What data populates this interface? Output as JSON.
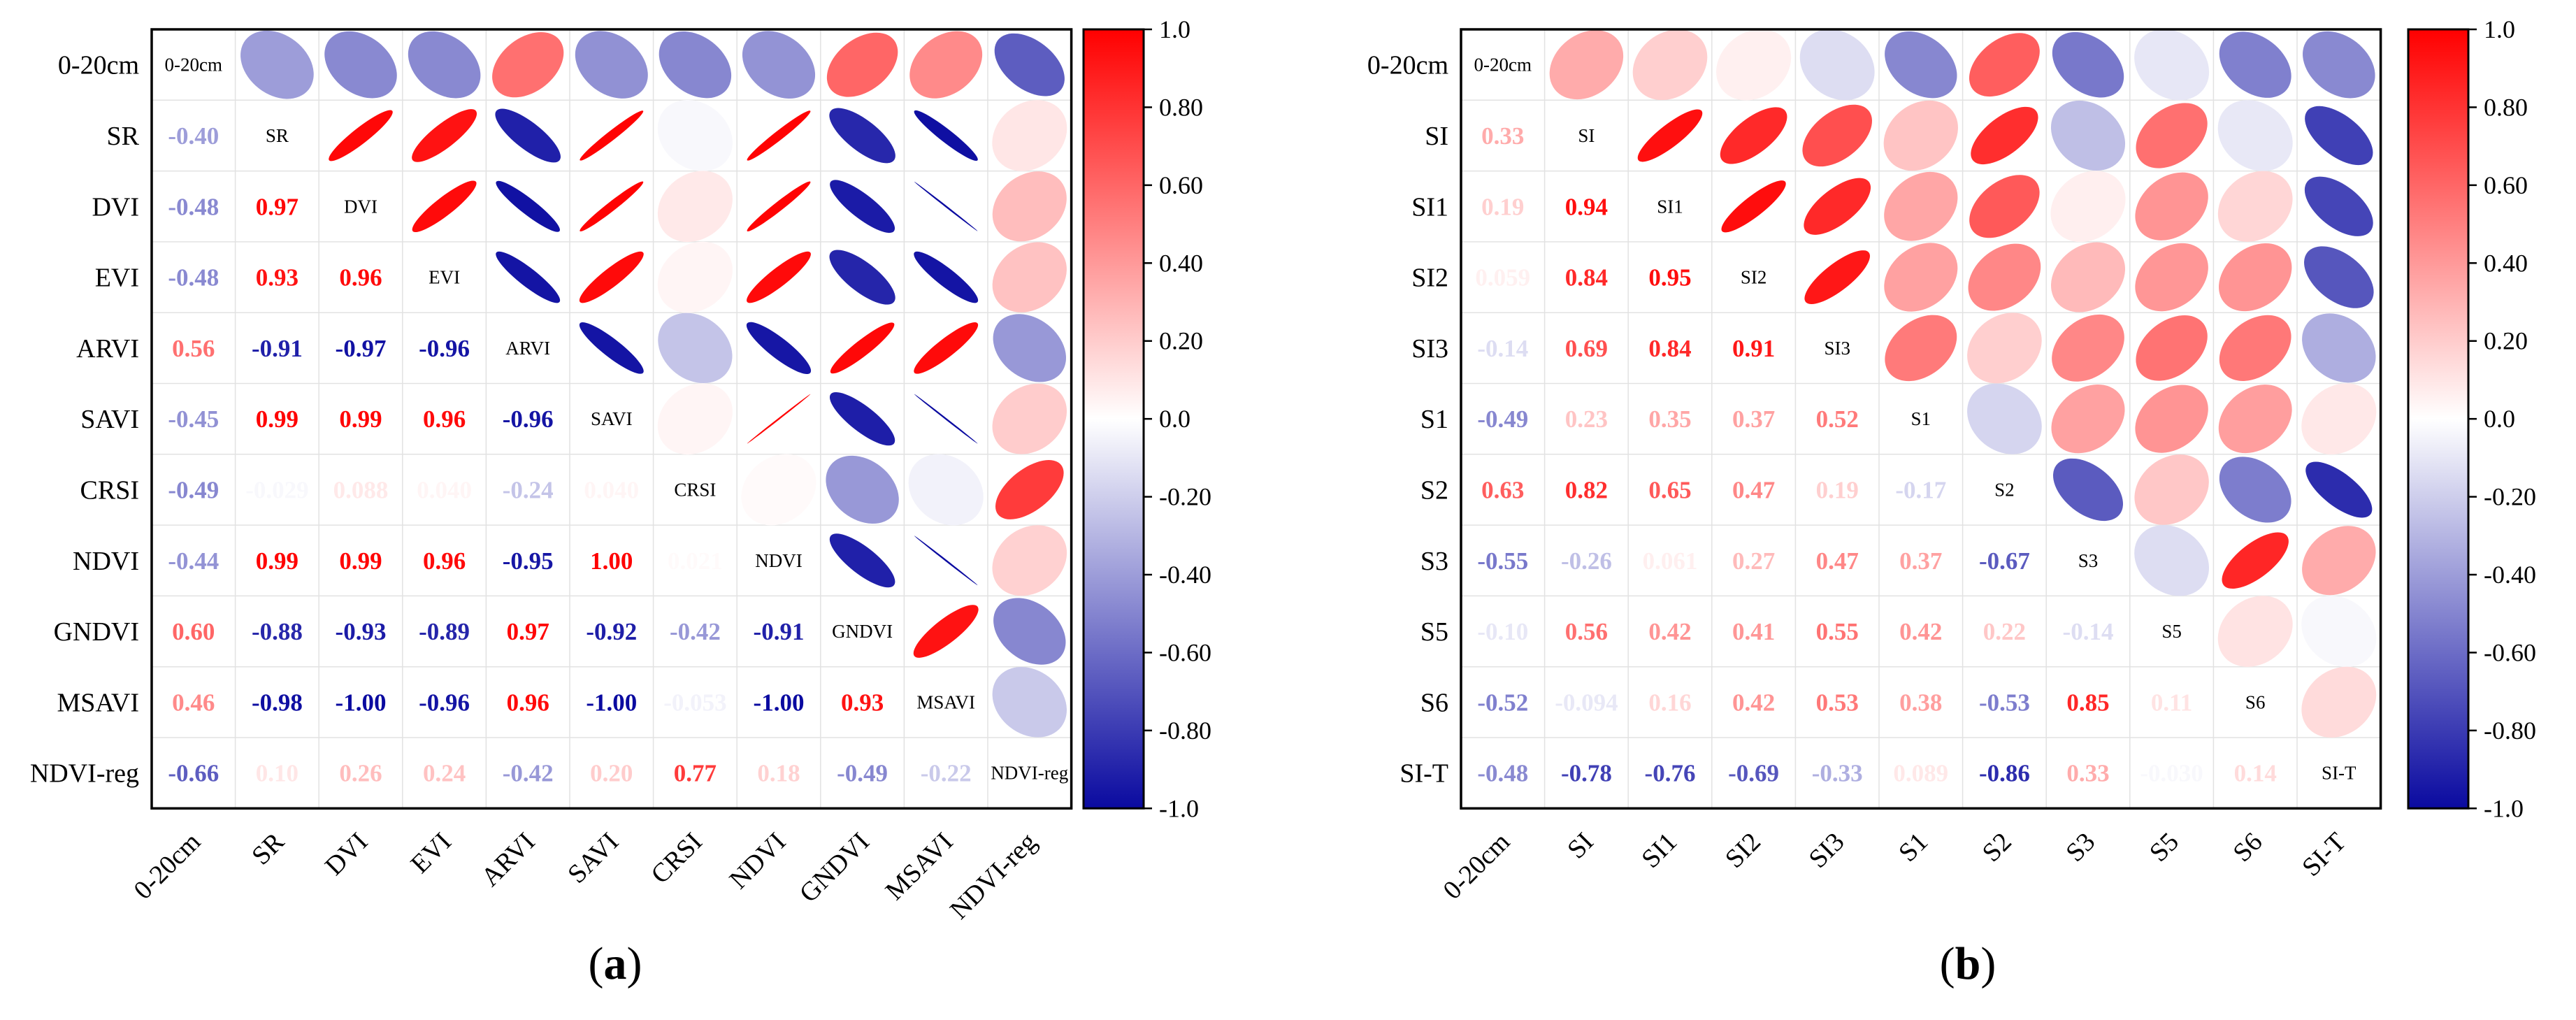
{
  "panels": [
    {
      "id": "a",
      "caption_letter": "a",
      "chart_data": {
        "type": "heatmap",
        "subtype": "correlation-matrix",
        "labels": [
          "0-20cm",
          "SR",
          "DVI",
          "EVI",
          "ARVI",
          "SAVI",
          "CRSI",
          "NDVI",
          "GNDVI",
          "MSAVI",
          "NDVI-reg"
        ],
        "matrix": [
          [
            1,
            -0.4,
            -0.48,
            -0.48,
            0.56,
            -0.45,
            -0.49,
            -0.44,
            0.6,
            0.46,
            -0.66
          ],
          [
            -0.4,
            1,
            0.97,
            0.93,
            -0.91,
            0.99,
            -0.029,
            0.99,
            -0.88,
            -0.98,
            0.1
          ],
          [
            -0.48,
            0.97,
            1,
            0.96,
            -0.97,
            0.99,
            0.088,
            0.99,
            -0.93,
            -1.0,
            0.26
          ],
          [
            -0.48,
            0.93,
            0.96,
            1,
            -0.96,
            0.96,
            0.04,
            0.96,
            -0.89,
            -0.96,
            0.24
          ],
          [
            0.56,
            -0.91,
            -0.97,
            -0.96,
            1,
            -0.96,
            -0.24,
            -0.95,
            0.97,
            0.96,
            -0.42
          ],
          [
            -0.45,
            0.99,
            0.99,
            0.96,
            -0.96,
            1,
            0.04,
            1.0,
            -0.92,
            -1.0,
            0.2
          ],
          [
            -0.49,
            -0.029,
            0.088,
            0.04,
            -0.24,
            0.04,
            1,
            0.021,
            -0.42,
            -0.053,
            0.77
          ],
          [
            -0.44,
            0.99,
            0.99,
            0.96,
            -0.95,
            1.0,
            0.021,
            1,
            -0.91,
            -1.0,
            0.18
          ],
          [
            0.6,
            -0.88,
            -0.93,
            -0.89,
            0.97,
            -0.92,
            -0.42,
            -0.91,
            1,
            0.93,
            -0.49
          ],
          [
            0.46,
            -0.98,
            -1.0,
            -0.96,
            0.96,
            -1.0,
            -0.053,
            -1.0,
            0.93,
            1,
            -0.22
          ],
          [
            -0.66,
            0.1,
            0.26,
            0.24,
            -0.42,
            0.2,
            0.77,
            0.18,
            -0.49,
            -0.22,
            1
          ]
        ],
        "text_labels": [
          [
            "",
            "-0.40",
            "-0.48",
            "-0.48",
            "0.56",
            "-0.45",
            "-0.49",
            "-0.44",
            "0.60",
            "0.46",
            "-0.66"
          ],
          [
            "",
            "",
            "0.97",
            "0.93",
            "-0.91",
            "0.99",
            "-0.029",
            "0.99",
            "-0.88",
            "-0.98",
            "0.10"
          ],
          [
            "",
            "",
            "",
            "0.96",
            "-0.97",
            "0.99",
            "0.088",
            "0.99",
            "-0.93",
            "-1.00",
            "0.26"
          ],
          [
            "",
            "",
            "",
            "",
            "-0.96",
            "0.96",
            "0.040",
            "0.96",
            "-0.89",
            "-0.96",
            "0.24"
          ],
          [
            "",
            "",
            "",
            "",
            "",
            "-0.96",
            "-0.24",
            "-0.95",
            "0.97",
            "0.96",
            "-0.42"
          ],
          [
            "",
            "",
            "",
            "",
            "",
            "",
            "0.040",
            "1.00",
            "-0.92",
            "-1.00",
            "0.20"
          ],
          [
            "",
            "",
            "",
            "",
            "",
            "",
            "",
            "0.021",
            "-0.42",
            "-0.053",
            "0.77"
          ],
          [
            "",
            "",
            "",
            "",
            "",
            "",
            "",
            "",
            "-0.91",
            "-1.00",
            "0.18"
          ],
          [
            "",
            "",
            "",
            "",
            "",
            "",
            "",
            "",
            "",
            "0.93",
            "-0.49"
          ],
          [
            "",
            "",
            "",
            "",
            "",
            "",
            "",
            "",
            "",
            "",
            "-0.22"
          ],
          [
            "",
            "",
            "",
            "",
            "",
            "",
            "",
            "",
            "",
            "",
            ""
          ]
        ],
        "lower_triangle": "numbers",
        "upper_triangle": "ellipses",
        "diagonal": "variable names",
        "colorbar": {
          "range": [
            -1.0,
            1.0
          ],
          "ticks": [
            "1.0",
            "0.80",
            "0.60",
            "0.40",
            "0.20",
            "0.0",
            "-0.20",
            "-0.40",
            "-0.60",
            "-0.80",
            "-1.0"
          ],
          "colors": {
            "negative": "#0a0aa0",
            "zero": "#ffffff",
            "positive": "#ff0000"
          }
        }
      }
    },
    {
      "id": "b",
      "caption_letter": "b",
      "chart_data": {
        "type": "heatmap",
        "subtype": "correlation-matrix",
        "labels": [
          "0-20cm",
          "SI",
          "SI1",
          "SI2",
          "SI3",
          "S1",
          "S2",
          "S3",
          "S5",
          "S6",
          "SI-T"
        ],
        "matrix": [
          [
            1,
            0.33,
            0.19,
            0.059,
            -0.14,
            -0.49,
            0.63,
            -0.55,
            -0.1,
            -0.52,
            -0.48
          ],
          [
            0.33,
            1,
            0.94,
            0.84,
            0.69,
            0.23,
            0.82,
            -0.26,
            0.56,
            -0.094,
            -0.78
          ],
          [
            0.19,
            0.94,
            1,
            0.95,
            0.84,
            0.35,
            0.65,
            0.061,
            0.42,
            0.16,
            -0.76
          ],
          [
            0.059,
            0.84,
            0.95,
            1,
            0.91,
            0.37,
            0.47,
            0.27,
            0.41,
            0.42,
            -0.69
          ],
          [
            -0.14,
            0.69,
            0.84,
            0.91,
            1,
            0.52,
            0.19,
            0.47,
            0.55,
            0.53,
            -0.33
          ],
          [
            -0.49,
            0.23,
            0.35,
            0.37,
            0.52,
            1,
            -0.17,
            0.37,
            0.42,
            0.38,
            0.089
          ],
          [
            0.63,
            0.82,
            0.65,
            0.47,
            0.19,
            -0.17,
            1,
            -0.67,
            0.22,
            -0.53,
            -0.86
          ],
          [
            -0.55,
            -0.26,
            0.061,
            0.27,
            0.47,
            0.37,
            -0.67,
            1,
            -0.14,
            0.85,
            0.33
          ],
          [
            -0.1,
            0.56,
            0.42,
            0.41,
            0.55,
            0.42,
            0.22,
            -0.14,
            1,
            0.11,
            -0.03
          ],
          [
            -0.52,
            -0.094,
            0.16,
            0.42,
            0.53,
            0.38,
            -0.53,
            0.85,
            0.11,
            1,
            0.14
          ],
          [
            -0.48,
            -0.78,
            -0.76,
            -0.69,
            -0.33,
            0.089,
            -0.86,
            0.33,
            -0.03,
            0.14,
            1
          ]
        ],
        "text_labels": [
          [
            "",
            "0.33",
            "0.19",
            "0.059",
            "-0.14",
            "-0.49",
            "0.63",
            "-0.55",
            "-0.10",
            "-0.52",
            "-0.48"
          ],
          [
            "",
            "",
            "0.94",
            "0.84",
            "0.69",
            "0.23",
            "0.82",
            "-0.26",
            "0.56",
            "-0.094",
            "-0.78"
          ],
          [
            "",
            "",
            "",
            "0.95",
            "0.84",
            "0.35",
            "0.65",
            "0.061",
            "0.42",
            "0.16",
            "-0.76"
          ],
          [
            "",
            "",
            "",
            "",
            "0.91",
            "0.37",
            "0.47",
            "0.27",
            "0.41",
            "0.42",
            "-0.69"
          ],
          [
            "",
            "",
            "",
            "",
            "",
            "0.52",
            "0.19",
            "0.47",
            "0.55",
            "0.53",
            "-0.33"
          ],
          [
            "",
            "",
            "",
            "",
            "",
            "",
            "-0.17",
            "0.37",
            "0.42",
            "0.38",
            "0.089"
          ],
          [
            "",
            "",
            "",
            "",
            "",
            "",
            "",
            "-0.67",
            "0.22",
            "-0.53",
            "-0.86"
          ],
          [
            "",
            "",
            "",
            "",
            "",
            "",
            "",
            "",
            "-0.14",
            "0.85",
            "0.33"
          ],
          [
            "",
            "",
            "",
            "",
            "",
            "",
            "",
            "",
            "",
            "0.11",
            "-0.030"
          ],
          [
            "",
            "",
            "",
            "",
            "",
            "",
            "",
            "",
            "",
            "",
            "0.14"
          ],
          [
            "",
            "",
            "",
            "",
            "",
            "",
            "",
            "",
            "",
            "",
            ""
          ]
        ],
        "lower_triangle": "numbers",
        "upper_triangle": "ellipses",
        "diagonal": "variable names",
        "colorbar": {
          "range": [
            -1.0,
            1.0
          ],
          "ticks": [
            "1.0",
            "0.80",
            "0.60",
            "0.40",
            "0.20",
            "0.0",
            "-0.20",
            "-0.40",
            "-0.60",
            "-0.80",
            "-1.0"
          ],
          "colors": {
            "negative": "#0a0aa0",
            "zero": "#ffffff",
            "positive": "#ff0000"
          }
        }
      }
    }
  ]
}
